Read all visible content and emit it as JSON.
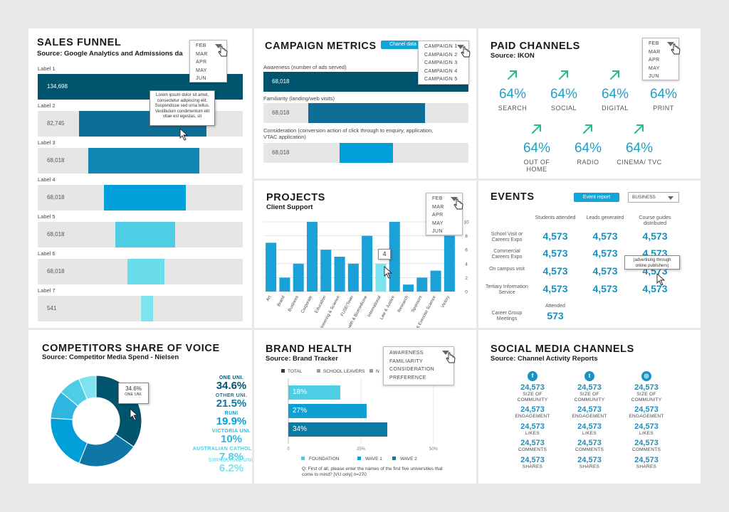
{
  "colors": {
    "navy": "#00546e",
    "dark_blue": "#0e77a6",
    "mid_blue": "#009fd9",
    "light_blue": "#4fcde4",
    "pale_blue": "#7de3ef",
    "accent": "#1aa1c9",
    "green_arrow": "#1dbf84"
  },
  "sales_funnel": {
    "title": "SALES FUNNEL",
    "subtitle": "Source: Google Analytics and Admissions da",
    "months": [
      "FEB",
      "MAR",
      "APR",
      "MAY",
      "JUN"
    ],
    "tooltip": "Lorem ipsum dolor sit amet, consectetur adipiscing elit. Suspendisse sed urna tellus. Vestibulum condimentum elit vitae est egestas, sit",
    "rows": [
      {
        "label": "Label 1",
        "value": "134,698",
        "fraction": 1.0,
        "color": "#00546e",
        "light_text": true
      },
      {
        "label": "Label 2",
        "value": "82,745",
        "fraction": 0.62,
        "color": "#0e6f96",
        "light_text": false
      },
      {
        "label": "Label 3",
        "value": "68,018",
        "fraction": 0.54,
        "color": "#0f86b3",
        "light_text": false
      },
      {
        "label": "Label 4",
        "value": "68,018",
        "fraction": 0.4,
        "color": "#009fd9",
        "light_text": false
      },
      {
        "label": "Label 5",
        "value": "68,018",
        "fraction": 0.29,
        "color": "#4fcde4",
        "light_text": false
      },
      {
        "label": "Label 6",
        "value": "68,018",
        "fraction": 0.18,
        "color": "#6adcec",
        "light_text": false
      },
      {
        "label": "Label 7",
        "value": "541",
        "fraction": 0.06,
        "color": "#7de3ef",
        "light_text": false
      }
    ]
  },
  "campaign": {
    "title": "CAMPAIGN METRICS",
    "button": "Chanel data",
    "options": [
      "CAMPAIGN 1",
      "CAMPAIGN 2",
      "CAMPAIGN 3",
      "CAMPAIGN 4",
      "CAMPAIGN 5"
    ],
    "rows": [
      {
        "label": "Awareness (number of ads served)",
        "value": "68,018",
        "start": 0.0,
        "fraction": 1.0,
        "color": "#00546e",
        "light_text": true
      },
      {
        "label": "Familiarity (landing/web visits)",
        "value": "68,018",
        "start": 0.22,
        "fraction": 0.57,
        "color": "#0e6f96",
        "light_text": false
      },
      {
        "label": "Consideration (conversion action of click through to enquiry, application, VTAC application)",
        "value": "68,018",
        "start": 0.37,
        "fraction": 0.26,
        "color": "#009fd9",
        "light_text": false
      }
    ]
  },
  "paid": {
    "title": "PAID CHANNELS",
    "subtitle": "Source: IKON",
    "months": [
      "FEB",
      "MAR",
      "APR",
      "MAY",
      "JUN"
    ],
    "channels": [
      {
        "pct": "64%",
        "label": "SEARCH",
        "arrow": true
      },
      {
        "pct": "64%",
        "label": "SOCIAL",
        "arrow": true
      },
      {
        "pct": "64%",
        "label": "DIGITAL",
        "arrow": true
      },
      {
        "pct": "64%",
        "label": "PRINT",
        "arrow": false
      },
      {
        "pct": "64%",
        "label": "OUT OF HOME",
        "arrow": true
      },
      {
        "pct": "64%",
        "label": "RADIO",
        "arrow": true
      },
      {
        "pct": "64%",
        "label": "CINEMA/ TVC",
        "arrow": true
      }
    ]
  },
  "projects": {
    "title": "PROJECTS",
    "subtitle": "Client Support",
    "months": [
      "FEB",
      "MAR",
      "APR",
      "MAY",
      "JUN"
    ],
    "tooltip_value": "4"
  },
  "chart_data": {
    "type": "bar",
    "categories": [
      "Art",
      "Brand",
      "Business",
      "Corporate",
      "Education",
      "Engineering & Science",
      "FUSE/Town",
      "Health & Biomedicine",
      "International",
      "Law & Justice",
      "Research",
      "Sponsors",
      "Sport & Exercise Science",
      "Victory"
    ],
    "values": [
      7,
      2,
      4,
      10,
      6,
      5,
      4,
      8,
      4,
      10,
      1,
      2,
      3,
      8
    ],
    "ylim": [
      0,
      10
    ],
    "yticks": [
      "0",
      "2",
      "4",
      "6",
      "8",
      "10"
    ],
    "highlight_index": 8,
    "grid": true
  },
  "events": {
    "title": "EVENTS",
    "button": "Event report",
    "select": "BUSINESS",
    "columns": [
      "Students attended",
      "Leads generated",
      "Course guides distributed"
    ],
    "rows": [
      {
        "label": "School Visit or Careers Expo",
        "values": [
          "4,573",
          "4,573",
          "4,573"
        ]
      },
      {
        "label": "Commercial Careers Expo",
        "values": [
          "4,573",
          "4,573",
          "4,573"
        ]
      },
      {
        "label": "On campus visit",
        "values": [
          "4,573",
          "4,573",
          "4,573"
        ]
      },
      {
        "label": "Tertiary Information Service",
        "values": [
          "4,573",
          "4,573",
          "4,573"
        ]
      }
    ],
    "career_label": "Career Group Meetings",
    "career_col": "Attended",
    "career_value": "573",
    "tooltip": "(advertising through online publishers)"
  },
  "competitors": {
    "title": "COMPETITORS SHARE OF VOICE",
    "subtitle": "Source: Competitor Media Spend - Nielsen",
    "tooltip_pct": "34.6%",
    "tooltip_name": "ONE UNI.",
    "items": [
      {
        "name": "ONE UNI.",
        "value": "34.6%",
        "color": "#00546e"
      },
      {
        "name": "OTHER UNI.",
        "value": "21.5%",
        "color": "#0e77a6"
      },
      {
        "name": "RUNI",
        "value": "19.9%",
        "color": "#009fd9"
      },
      {
        "name": "VICTORIA UNI.",
        "value": "10%",
        "color": "#2fb6e0"
      },
      {
        "name": "AUSTRALIAN CATHOLIC UNI.",
        "value": "7.8%",
        "color": "#4fcde4"
      },
      {
        "name": "SWINBURNE UNI.",
        "value": "6.2%",
        "color": "#7de3ef"
      }
    ],
    "shares": [
      34.6,
      21.5,
      19.9,
      10,
      7.8,
      6.2
    ]
  },
  "brand": {
    "title": "BRAND HEALTH",
    "subtitle": "Source: Brand Tracker",
    "filters": [
      "TOTAL",
      "SCHOOL LEAVERS",
      "N"
    ],
    "options": [
      "AWARENESS",
      "FAMILIARITY",
      "CONSIDERATION",
      "PREFERENCE"
    ],
    "bars": [
      {
        "label": "18%",
        "value": 18,
        "color": "#4fcde4"
      },
      {
        "label": "27%",
        "value": 27,
        "color": "#0f9fd2"
      },
      {
        "label": "34%",
        "value": 34,
        "color": "#0e7aa2"
      }
    ],
    "axis": [
      "0",
      "25%",
      "50%"
    ],
    "legend": [
      "FOUNDATION",
      "WAVE 1",
      "WAVE 2"
    ],
    "question": "Q: First of all, please enter the names of the first five universities that come to mind? [VU only] n=270"
  },
  "social": {
    "title": "SOCIAL MEDIA CHANNELS",
    "subtitle": "Source: Channel Activity Reports",
    "columns": [
      {
        "icon": "facebook-icon",
        "glyph": "f",
        "stats": [
          {
            "value": "24,573",
            "label": "SIZE OF COMMUNITY"
          },
          {
            "value": "24,573",
            "label": "ENGAGEMENT"
          },
          {
            "value": "24,573",
            "label": "LIKES"
          },
          {
            "value": "24,573",
            "label": "COMMENTS"
          },
          {
            "value": "24,573",
            "label": "SHARES"
          }
        ]
      },
      {
        "icon": "twitter-icon",
        "glyph": "t",
        "stats": [
          {
            "value": "24,573",
            "label": "SIZE OF COMMUNITY"
          },
          {
            "value": "24,573",
            "label": "ENGAGEMENT"
          },
          {
            "value": "24,573",
            "label": "LIKES"
          },
          {
            "value": "24,573",
            "label": "COMMENTS"
          },
          {
            "value": "24,573",
            "label": "SHARES"
          }
        ]
      },
      {
        "icon": "instagram-icon",
        "glyph": "◎",
        "stats": [
          {
            "value": "24,573",
            "label": "SIZE OF COMMUNITY"
          },
          {
            "value": "24,573",
            "label": "ENGAGEMENT"
          },
          {
            "value": "24,573",
            "label": "LIKES"
          },
          {
            "value": "24,573",
            "label": "COMMENTS"
          },
          {
            "value": "24,573",
            "label": "SHARES"
          }
        ]
      }
    ]
  }
}
